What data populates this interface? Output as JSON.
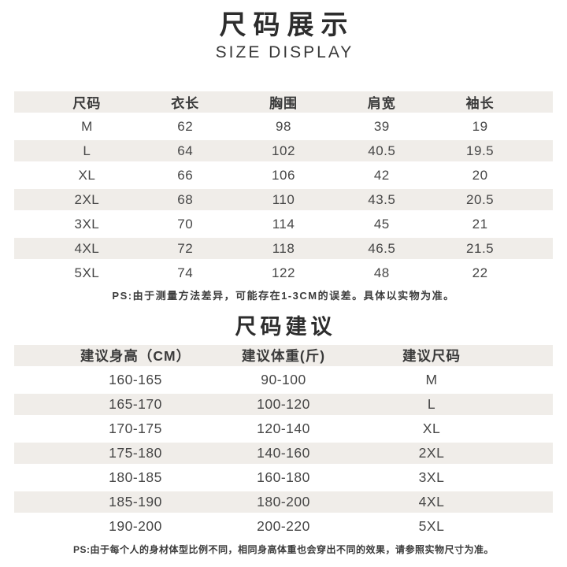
{
  "page": {
    "title_zh": "尺码展示",
    "title_en": "SIZE DISPLAY",
    "section2_title": "尺码建议",
    "note1": "PS:由于测量方法差异，可能存在1-3CM的误差。具体以实物为准。",
    "note2": "PS:由于每个人的身材体型比例不同，相同身高体重也会穿出不同的效果，请参照实物尺寸为准。"
  },
  "size_table": {
    "headers": [
      "尺码",
      "衣长",
      "胸围",
      "肩宽",
      "袖长"
    ],
    "rows": [
      [
        "M",
        "62",
        "98",
        "39",
        "19"
      ],
      [
        "L",
        "64",
        "102",
        "40.5",
        "19.5"
      ],
      [
        "XL",
        "66",
        "106",
        "42",
        "20"
      ],
      [
        "2XL",
        "68",
        "110",
        "43.5",
        "20.5"
      ],
      [
        "3XL",
        "70",
        "114",
        "45",
        "21"
      ],
      [
        "4XL",
        "72",
        "118",
        "46.5",
        "21.5"
      ],
      [
        "5XL",
        "74",
        "122",
        "48",
        "22"
      ]
    ]
  },
  "suggest_table": {
    "headers": [
      "建议身高（CM）",
      "建议体重(斤)",
      "建议尺码"
    ],
    "rows": [
      [
        "160-165",
        "90-100",
        "M"
      ],
      [
        "165-170",
        "100-120",
        "L"
      ],
      [
        "170-175",
        "120-140",
        "XL"
      ],
      [
        "175-180",
        "140-160",
        "2XL"
      ],
      [
        "180-185",
        "160-180",
        "3XL"
      ],
      [
        "185-190",
        "180-200",
        "4XL"
      ],
      [
        "190-200",
        "200-220",
        "5XL"
      ]
    ]
  },
  "colors": {
    "stripe": "#f0ede9",
    "text": "#3d3d3d",
    "background": "#ffffff"
  }
}
